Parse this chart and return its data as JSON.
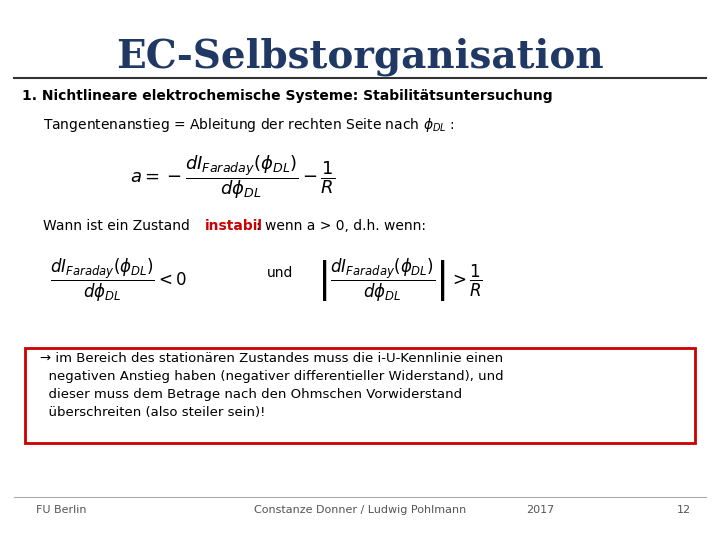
{
  "title": "EC-Selbstorganisation",
  "title_color": "#1F3864",
  "subtitle": "1. Nichtlineare elektrochemische Systeme: Stabilitätsuntersuchung",
  "line1_text": "Tangentenanstieg = Ableitung der rechten Seite nach $\\phi_{DL}$ :",
  "formula1": "$a = -\\dfrac{dI_{Faraday}(\\phi_{DL})}{d\\phi_{DL}} - \\dfrac{1}{R}$",
  "line2_plain": "Wann ist ein Zustand ",
  "line2_red": "instabil",
  "line2_rest": ": wenn a > 0, d.h. wenn:",
  "formula2a": "$\\dfrac{dI_{Faraday}(\\phi_{DL})}{d\\phi_{DL}} < 0$",
  "und_text": "und",
  "formula2b": "$\\left|\\dfrac{dI_{Faraday}(\\phi_{DL})}{d\\phi_{DL}}\\right| > \\dfrac{1}{R}$",
  "box_text": "→ im Bereich des stationären Zustandes muss die i-U-Kennlinie einen\n  negativen Anstieg haben (negativer differentieller Widerstand), und\n  dieser muss dem Betrage nach den Ohmschen Vorwiderstand\n  überschreiten (also steiler sein)!",
  "box_color": "#cc0000",
  "footer_left": "FU Berlin",
  "footer_center": "Constanze Donner / Ludwig Pohlmann",
  "footer_year": "2017",
  "footer_page": "12",
  "bg_color": "#ffffff"
}
